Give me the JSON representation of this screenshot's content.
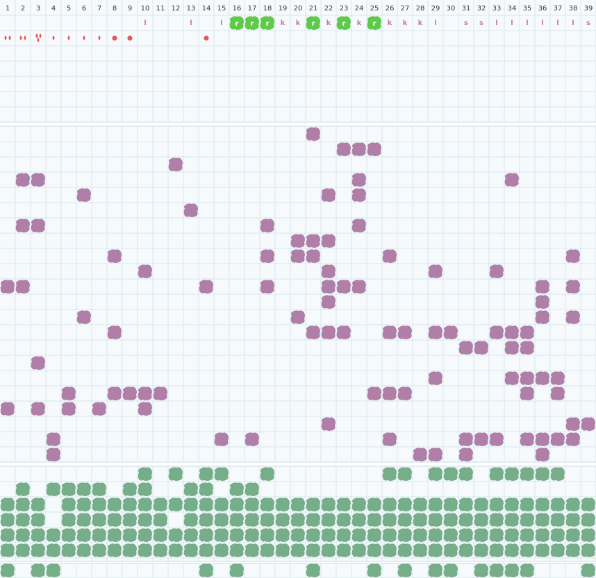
{
  "board": {
    "columns": [
      "1",
      "2",
      "3",
      "4",
      "5",
      "6",
      "7",
      "8",
      "9",
      "10",
      "11",
      "12",
      "13",
      "14",
      "15",
      "16",
      "17",
      "18",
      "19",
      "20",
      "21",
      "22",
      "23",
      "24",
      "25",
      "26",
      "27",
      "28",
      "29",
      "30",
      "31",
      "32",
      "33",
      "34",
      "35",
      "36",
      "37",
      "38",
      "39"
    ],
    "colors": {
      "background": "#f7fafc",
      "grid": "#d6e6ee",
      "purple_blob": "#b07fa8",
      "green_blob": "#76ae8a",
      "bright_green_tile": "#5fc94a",
      "label_text": "#c07fa0",
      "red_marker": "#e35a55"
    },
    "status_labels": [
      {
        "col": 10,
        "text": "l"
      },
      {
        "col": 13,
        "text": "l"
      },
      {
        "col": 15,
        "text": "l"
      },
      {
        "col": 19,
        "text": "k"
      },
      {
        "col": 20,
        "text": "k"
      },
      {
        "col": 22,
        "text": "k"
      },
      {
        "col": 24,
        "text": "k"
      },
      {
        "col": 26,
        "text": "k"
      },
      {
        "col": 27,
        "text": "k"
      },
      {
        "col": 28,
        "text": "k"
      },
      {
        "col": 29,
        "text": "l"
      },
      {
        "col": 31,
        "text": "s"
      },
      {
        "col": 32,
        "text": "s"
      },
      {
        "col": 33,
        "text": "l"
      },
      {
        "col": 34,
        "text": "l"
      },
      {
        "col": 35,
        "text": "l"
      },
      {
        "col": 36,
        "text": "l"
      },
      {
        "col": 37,
        "text": "l"
      },
      {
        "col": 38,
        "text": "l"
      },
      {
        "col": 39,
        "text": "s"
      }
    ],
    "bright_tiles": [
      {
        "col": 16,
        "text": "r"
      },
      {
        "col": 17,
        "text": "r"
      },
      {
        "col": 18,
        "text": "r"
      },
      {
        "col": 21,
        "text": "r"
      },
      {
        "col": 23,
        "text": "r"
      },
      {
        "col": 25,
        "text": "r"
      }
    ],
    "red_markers": [
      {
        "col": 1,
        "type": "drops-2"
      },
      {
        "col": 2,
        "type": "drops-2"
      },
      {
        "col": 3,
        "type": "drops-3"
      },
      {
        "col": 4,
        "type": "drop"
      },
      {
        "col": 5,
        "type": "drop"
      },
      {
        "col": 6,
        "type": "drop"
      },
      {
        "col": 7,
        "type": "drop"
      },
      {
        "col": 8,
        "type": "dot"
      },
      {
        "col": 9,
        "type": "dot"
      },
      {
        "col": 14,
        "type": "dot"
      }
    ],
    "purple_cells": [
      [
        0,
        21
      ],
      [
        1,
        23
      ],
      [
        1,
        24
      ],
      [
        1,
        25
      ],
      [
        2,
        12
      ],
      [
        3,
        2
      ],
      [
        3,
        3
      ],
      [
        3,
        24
      ],
      [
        3,
        34
      ],
      [
        4,
        6
      ],
      [
        4,
        22
      ],
      [
        4,
        24
      ],
      [
        5,
        13
      ],
      [
        6,
        2
      ],
      [
        6,
        3
      ],
      [
        6,
        18
      ],
      [
        6,
        24
      ],
      [
        7,
        20
      ],
      [
        7,
        21
      ],
      [
        7,
        22
      ],
      [
        8,
        8
      ],
      [
        8,
        18
      ],
      [
        8,
        20
      ],
      [
        8,
        21
      ],
      [
        8,
        26
      ],
      [
        8,
        38
      ],
      [
        9,
        10
      ],
      [
        9,
        22
      ],
      [
        9,
        29
      ],
      [
        9,
        33
      ],
      [
        10,
        1
      ],
      [
        10,
        2
      ],
      [
        10,
        14
      ],
      [
        10,
        18
      ],
      [
        10,
        22
      ],
      [
        10,
        23
      ],
      [
        10,
        24
      ],
      [
        10,
        36
      ],
      [
        10,
        38
      ],
      [
        11,
        22
      ],
      [
        11,
        36
      ],
      [
        12,
        6
      ],
      [
        12,
        20
      ],
      [
        12,
        36
      ],
      [
        12,
        38
      ],
      [
        13,
        8
      ],
      [
        13,
        21
      ],
      [
        13,
        22
      ],
      [
        13,
        23
      ],
      [
        13,
        26
      ],
      [
        13,
        27
      ],
      [
        13,
        29
      ],
      [
        13,
        30
      ],
      [
        13,
        33
      ],
      [
        13,
        34
      ],
      [
        13,
        35
      ],
      [
        14,
        31
      ],
      [
        14,
        32
      ],
      [
        14,
        34
      ],
      [
        14,
        35
      ],
      [
        15,
        3
      ],
      [
        16,
        29
      ],
      [
        16,
        34
      ],
      [
        16,
        35
      ],
      [
        16,
        36
      ],
      [
        16,
        37
      ],
      [
        17,
        5
      ],
      [
        17,
        8
      ],
      [
        17,
        9
      ],
      [
        17,
        10
      ],
      [
        17,
        11
      ],
      [
        17,
        25
      ],
      [
        17,
        26
      ],
      [
        17,
        27
      ],
      [
        17,
        35
      ],
      [
        17,
        37
      ],
      [
        18,
        1
      ],
      [
        18,
        3
      ],
      [
        18,
        5
      ],
      [
        18,
        7
      ],
      [
        18,
        10
      ],
      [
        19,
        22
      ],
      [
        19,
        38
      ],
      [
        19,
        39
      ],
      [
        20,
        4
      ],
      [
        20,
        15
      ],
      [
        20,
        17
      ],
      [
        20,
        26
      ],
      [
        20,
        31
      ],
      [
        20,
        32
      ],
      [
        20,
        33
      ],
      [
        20,
        35
      ],
      [
        20,
        36
      ],
      [
        20,
        37
      ],
      [
        20,
        38
      ],
      [
        21,
        4
      ],
      [
        21,
        28
      ],
      [
        21,
        29
      ],
      [
        21,
        31
      ],
      [
        21,
        36
      ]
    ],
    "green_rows": [
      [
        10,
        12,
        14,
        15,
        18,
        26,
        27,
        29,
        30,
        31,
        33,
        34,
        35,
        36,
        37
      ],
      [
        2,
        4,
        5,
        6,
        7,
        9,
        10,
        13,
        14,
        16,
        17
      ],
      [
        1,
        2,
        3,
        5,
        6,
        7,
        8,
        9,
        10,
        11,
        12,
        13,
        14,
        15,
        16,
        17,
        18,
        19,
        20,
        21,
        22,
        23,
        24,
        25,
        26,
        27,
        28,
        29,
        30,
        31,
        32,
        33,
        34,
        35,
        36,
        37,
        38,
        39
      ],
      [
        1,
        2,
        3,
        5,
        6,
        7,
        8,
        9,
        10,
        11,
        13,
        14,
        15,
        16,
        17,
        18,
        19,
        20,
        21,
        22,
        23,
        24,
        25,
        26,
        27,
        28,
        29,
        30,
        31,
        32,
        33,
        34,
        35,
        36,
        37,
        38,
        39
      ],
      [
        1,
        2,
        3,
        4,
        5,
        6,
        7,
        8,
        9,
        10,
        11,
        12,
        13,
        14,
        15,
        16,
        17,
        18,
        19,
        20,
        21,
        22,
        23,
        24,
        25,
        26,
        27,
        28,
        29,
        30,
        31,
        32,
        33,
        34,
        35,
        36,
        37,
        38,
        39
      ],
      [
        1,
        2,
        3,
        4,
        5,
        6,
        7,
        8,
        9,
        10,
        11,
        12,
        13,
        14,
        15,
        16,
        17,
        18,
        19,
        20,
        21,
        22,
        23,
        24,
        25,
        26,
        27,
        28,
        29,
        30,
        31,
        32,
        33,
        34,
        35,
        36,
        37,
        38,
        39
      ]
    ],
    "bottom_row": [
      1,
      3,
      4,
      14,
      16,
      21,
      25,
      27,
      29,
      30,
      32,
      33,
      34,
      35,
      39
    ]
  }
}
